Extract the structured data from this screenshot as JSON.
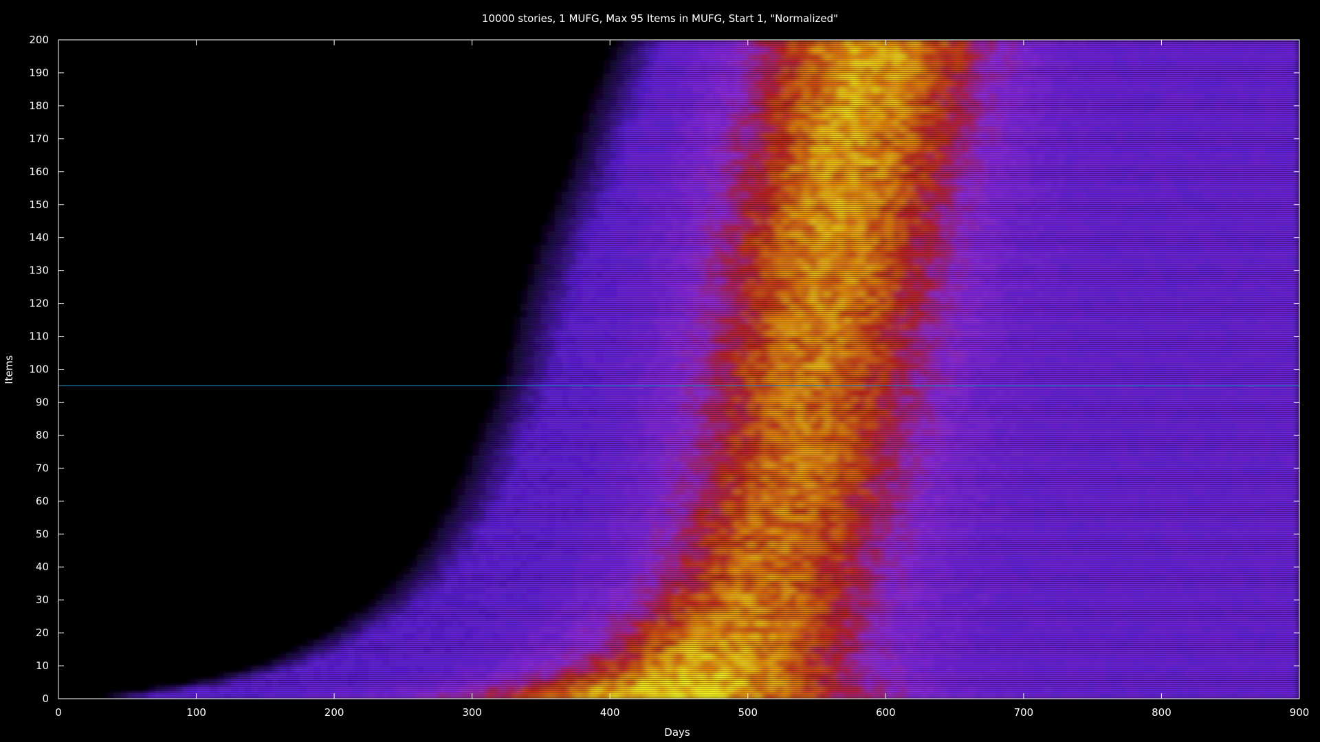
{
  "chart_data": {
    "type": "heatmap",
    "title": "10000 stories, 1 MUFG, Max 95 Items in MUFG, Start 1, \"Normalized\"",
    "xlabel": "Days",
    "ylabel": "Items",
    "xlim": [
      0,
      900
    ],
    "ylim": [
      0,
      200
    ],
    "x_ticks": [
      0,
      100,
      200,
      300,
      400,
      500,
      600,
      700,
      800,
      900
    ],
    "y_ticks": [
      0,
      10,
      20,
      30,
      40,
      50,
      60,
      70,
      80,
      90,
      100,
      110,
      120,
      130,
      140,
      150,
      160,
      170,
      180,
      190,
      200
    ],
    "x_tick_labels": [
      "0",
      "100",
      "200",
      "300",
      "400",
      "500",
      "600",
      "700",
      "800",
      "900"
    ],
    "y_tick_labels": [
      "0",
      "10",
      "20",
      "30",
      "40",
      "50",
      "60",
      "70",
      "80",
      "90",
      "100",
      "110",
      "120",
      "130",
      "140",
      "150",
      "160",
      "170",
      "180",
      "190",
      "200"
    ],
    "reference_line": {
      "axis": "y",
      "value": 95,
      "color": "#1a6ea0"
    },
    "colormap": [
      "#000000",
      "#5a1fd0",
      "#8b2ad6",
      "#b5201c",
      "#e08a10",
      "#f0f020"
    ],
    "colorscale_range": [
      0,
      1
    ],
    "heat_bands": [
      {
        "y": 0,
        "onset_day": 15,
        "peak_day": 430,
        "end_day": 900,
        "max_intensity": 1.0,
        "spread_days": 150
      },
      {
        "y": 5,
        "onset_day": 90,
        "peak_day": 460,
        "end_day": 900,
        "max_intensity": 0.95,
        "spread_days": 120
      },
      {
        "y": 10,
        "onset_day": 140,
        "peak_day": 475,
        "end_day": 900,
        "max_intensity": 0.9,
        "spread_days": 105
      },
      {
        "y": 20,
        "onset_day": 190,
        "peak_day": 490,
        "end_day": 900,
        "max_intensity": 0.85,
        "spread_days": 95
      },
      {
        "y": 30,
        "onset_day": 225,
        "peak_day": 505,
        "end_day": 900,
        "max_intensity": 0.8,
        "spread_days": 90
      },
      {
        "y": 40,
        "onset_day": 250,
        "peak_day": 515,
        "end_day": 900,
        "max_intensity": 0.78,
        "spread_days": 85
      },
      {
        "y": 60,
        "onset_day": 280,
        "peak_day": 530,
        "end_day": 900,
        "max_intensity": 0.78,
        "spread_days": 85
      },
      {
        "y": 80,
        "onset_day": 300,
        "peak_day": 540,
        "end_day": 900,
        "max_intensity": 0.78,
        "spread_days": 85
      },
      {
        "y": 100,
        "onset_day": 320,
        "peak_day": 545,
        "end_day": 900,
        "max_intensity": 0.8,
        "spread_days": 85
      },
      {
        "y": 120,
        "onset_day": 330,
        "peak_day": 555,
        "end_day": 900,
        "max_intensity": 0.82,
        "spread_days": 85
      },
      {
        "y": 140,
        "onset_day": 345,
        "peak_day": 560,
        "end_day": 900,
        "max_intensity": 0.85,
        "spread_days": 85
      },
      {
        "y": 160,
        "onset_day": 365,
        "peak_day": 570,
        "end_day": 900,
        "max_intensity": 0.87,
        "spread_days": 85
      },
      {
        "y": 180,
        "onset_day": 380,
        "peak_day": 580,
        "end_day": 900,
        "max_intensity": 0.88,
        "spread_days": 85
      },
      {
        "y": 200,
        "onset_day": 400,
        "peak_day": 590,
        "end_day": 900,
        "max_intensity": 0.9,
        "spread_days": 85
      }
    ]
  }
}
